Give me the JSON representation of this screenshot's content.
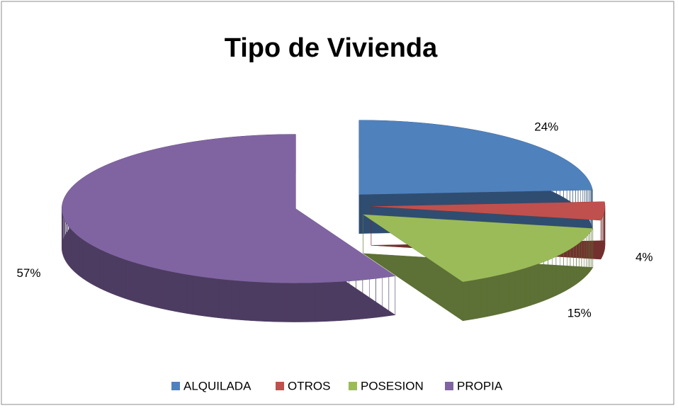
{
  "chart_data": {
    "type": "pie3d",
    "title": "Tipo de Vivienda",
    "categories": [
      "ALQUILADA",
      "OTROS",
      "POSESION",
      "PROPIA"
    ],
    "values": [
      24,
      4,
      15,
      57
    ],
    "value_labels": [
      "24%",
      "4%",
      "15%",
      "57%"
    ],
    "colors": [
      "#4f81bd",
      "#c0504d",
      "#9bbb59",
      "#8064a2"
    ],
    "legend": "bottom"
  }
}
